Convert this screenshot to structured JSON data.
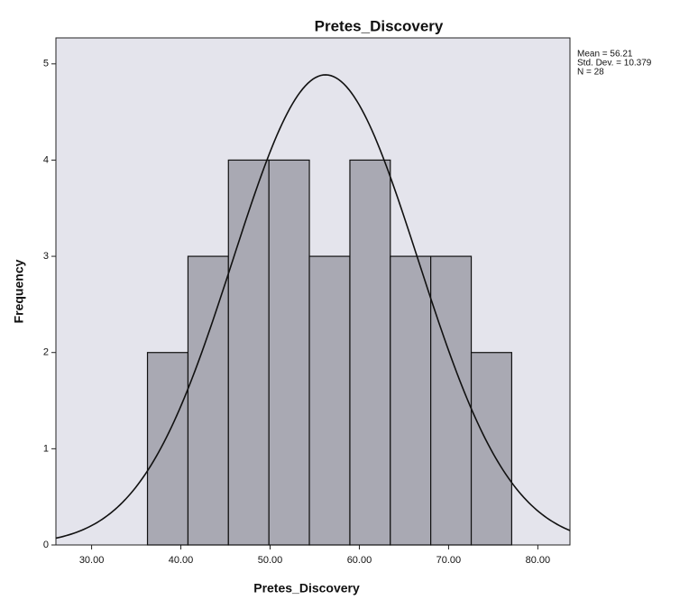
{
  "chart_data": {
    "type": "histogram",
    "title": "Pretes_Discovery",
    "x_label": "Pretes_Discovery",
    "y_label": "Frequency",
    "bins": [
      36.26,
      40.8,
      45.33,
      49.87,
      54.4,
      58.94,
      63.47,
      68.0,
      72.54,
      77.07
    ],
    "values": [
      2,
      3,
      4,
      4,
      3,
      4,
      3,
      3,
      2
    ],
    "color": "#a9a9b3",
    "xlim": [
      26,
      83.6
    ],
    "ylim": [
      0,
      5.27
    ],
    "xticks": [
      {
        "value": 30,
        "label": "30.00"
      },
      {
        "value": 40,
        "label": "40.00"
      },
      {
        "value": 50,
        "label": "50.00"
      },
      {
        "value": 60,
        "label": "60.00"
      },
      {
        "value": 70,
        "label": "70.00"
      },
      {
        "value": 80,
        "label": "80.00"
      }
    ],
    "yticks": [
      0,
      1,
      2,
      3,
      4,
      5
    ],
    "mean": 56.21,
    "std_dev": 10.379,
    "n": 28,
    "stats_labels": [
      "Mean = 56.21",
      "Std. Dev. = 10.379",
      "N = 28"
    ]
  }
}
